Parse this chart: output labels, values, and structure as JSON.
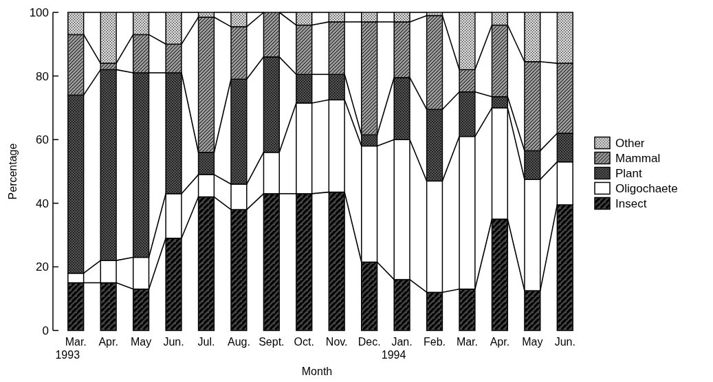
{
  "chart_data": {
    "type": "bar",
    "stacked": true,
    "xlabel": "Month",
    "ylabel": "Percentage",
    "categories": [
      "Mar.\n1993",
      "Apr.",
      "May",
      "Jun.",
      "Jul.",
      "Aug.",
      "Sept.",
      "Oct.",
      "Nov.",
      "Dec.",
      "Jan.\n1994",
      "Feb.",
      "Mar.",
      "Apr.",
      "May",
      "Jun."
    ],
    "series": [
      {
        "name": "Insect",
        "color": "#444444",
        "values": [
          15,
          15,
          13,
          29,
          42,
          38,
          43,
          43,
          43.5,
          21.5,
          16,
          12,
          13,
          35,
          12.5,
          39.5
        ]
      },
      {
        "name": "Oligochaete",
        "color": "#ffffff",
        "values": [
          3,
          7,
          10,
          14,
          7,
          8,
          13,
          28.5,
          29,
          36.5,
          44,
          35,
          48,
          35,
          35,
          13.5
        ]
      },
      {
        "name": "Plant",
        "color": "#555555",
        "values": [
          56,
          60,
          58,
          38,
          7,
          33,
          30,
          9,
          8,
          3.5,
          19.5,
          22.5,
          14,
          3.5,
          9,
          9
        ]
      },
      {
        "name": "Mammal",
        "color": "#999999",
        "values": [
          19,
          2,
          12,
          9,
          42.5,
          16.5,
          14,
          15.5,
          16.5,
          35.5,
          17.5,
          29.5,
          7,
          22.5,
          28,
          22
        ]
      },
      {
        "name": "Other",
        "color": "#cccccc",
        "values": [
          7,
          16,
          7,
          10,
          1.5,
          4.5,
          0,
          4,
          3,
          3,
          3,
          1,
          18,
          4,
          15.5,
          16
        ]
      }
    ],
    "ylim": [
      0,
      100
    ],
    "yticks": [
      0,
      20,
      40,
      60,
      80,
      100
    ],
    "grid": false,
    "legend": "right"
  }
}
